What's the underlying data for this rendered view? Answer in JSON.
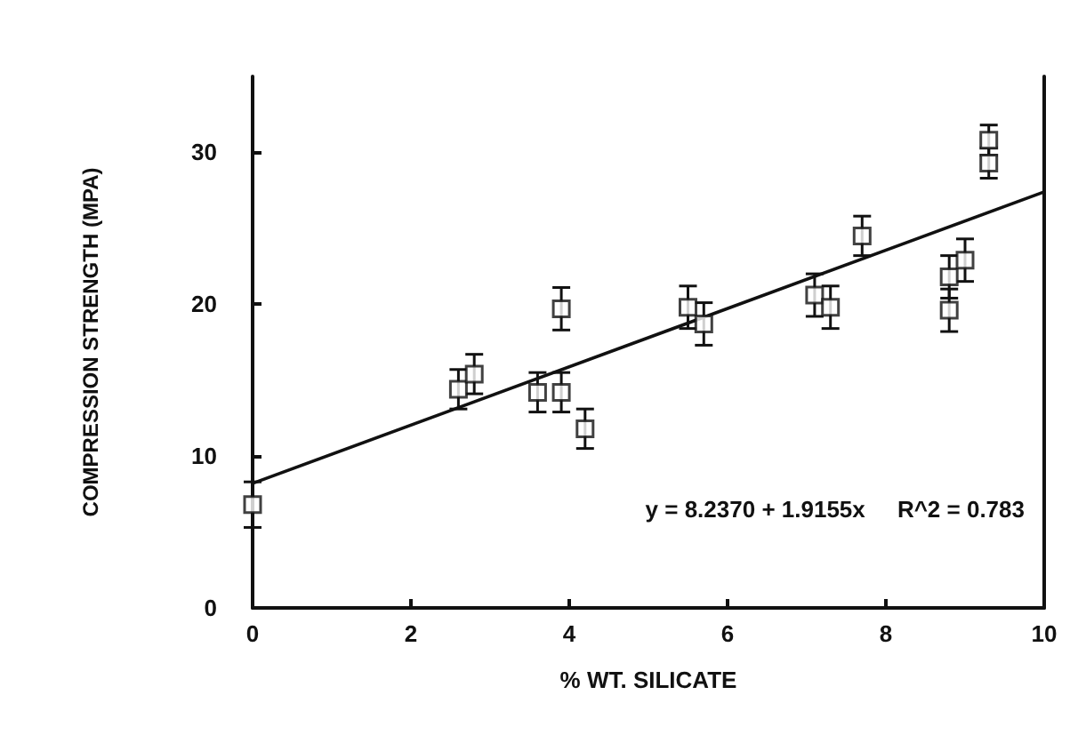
{
  "chart_data": {
    "type": "scatter",
    "xlabel": "% WT. SILICATE",
    "ylabel": "COMPRESSION STRENGTH (MPA)",
    "annotations": [
      "y = 8.2370 + 1.9155x     R^2 = 0.783"
    ],
    "xlim": [
      0,
      10
    ],
    "xticks": [
      0,
      2,
      4,
      6,
      8,
      10
    ],
    "ylim": [
      0,
      35
    ],
    "yticks": [
      0,
      10,
      20,
      30
    ],
    "grid": false,
    "marker": "square",
    "series": [
      {
        "color": "#111111",
        "x": [
          0,
          2.6,
          2.8,
          3.6,
          3.9,
          4.2,
          3.9,
          5.5,
          5.7,
          7.1,
          7.3,
          7.7,
          8.8,
          8.8,
          9.0,
          9.3,
          9.3
        ],
        "values": [
          6.8,
          14.4,
          15.4,
          14.2,
          14.2,
          11.8,
          19.7,
          19.8,
          18.7,
          20.6,
          19.8,
          24.5,
          19.6,
          21.8,
          22.9,
          29.3,
          30.8
        ],
        "errors": [
          1.5,
          1.3,
          1.3,
          1.3,
          1.3,
          1.3,
          1.4,
          1.4,
          1.4,
          1.4,
          1.4,
          1.3,
          1.4,
          1.4,
          1.4,
          1.0,
          1.0
        ]
      },
      {
        "type": "line",
        "color": "#111111",
        "x": [
          0,
          10
        ],
        "values": [
          8.2,
          27.4
        ],
        "marker": "none",
        "line_style": "solid"
      }
    ]
  }
}
